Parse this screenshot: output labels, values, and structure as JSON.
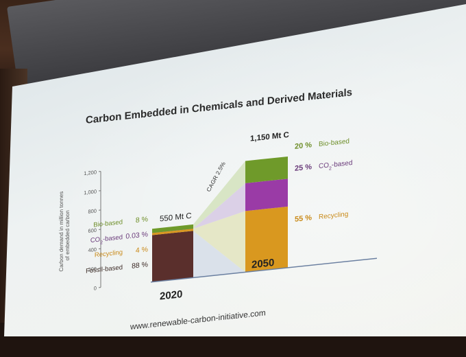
{
  "chart_data": {
    "type": "bar",
    "title": "Carbon Embedded in Chemicals and Derived Materials",
    "ylabel_line1": "Carbon demand in million tonnes",
    "ylabel_line2": "of embedded carbon",
    "ylim": [
      0,
      1200
    ],
    "yticks": [
      "0",
      "200",
      "400",
      "600",
      "800",
      "1,000",
      "1,200"
    ],
    "ytick_values": [
      0,
      200,
      400,
      600,
      800,
      1000,
      1200
    ],
    "categories": [
      "2020",
      "2050"
    ],
    "totals": [
      "550 Mt C",
      "1,150 Mt C"
    ],
    "total_values": [
      550,
      1150
    ],
    "cagr_label": "CAGR 2.5%",
    "series": [
      {
        "name": "Fossil-based",
        "color": "#5a2f2c",
        "values": [
          484,
          0
        ],
        "pct_labels": [
          "88 %",
          ""
        ]
      },
      {
        "name": "Recycling",
        "color": "#d9981f",
        "values": [
          22,
          632.5
        ],
        "pct_labels": [
          "4 %",
          "55 %"
        ]
      },
      {
        "name": "CO2-based",
        "color": "#9a3ba6",
        "values": [
          0.2,
          287.5
        ],
        "pct_labels": [
          "0.03 %",
          "25 %"
        ]
      },
      {
        "name": "Bio-based",
        "color": "#6f9a2a",
        "values": [
          44,
          230
        ],
        "pct_labels": [
          "8 %",
          "20 %"
        ]
      }
    ],
    "legend_2020": [
      {
        "name": "Bio-based",
        "pct": "8 %",
        "color": "#6f8f2a"
      },
      {
        "name": "CO",
        "sub": "2",
        "suffix": "-based",
        "pct": "0.03 %",
        "color": "#6a3b7a"
      },
      {
        "name": "Recycling",
        "pct": "4 %",
        "color": "#c98a18"
      },
      {
        "name": "Fossil-based",
        "pct": "88 %",
        "color": "#3b2a25"
      }
    ],
    "legend_2050": [
      {
        "name": "Bio-based",
        "pct": "20 %",
        "color": "#6f8f2a"
      },
      {
        "name": "CO",
        "sub": "2",
        "suffix": "-based",
        "pct": "25 %",
        "color": "#6a3b7a"
      },
      {
        "name": "Recycling",
        "pct": "55 %",
        "color": "#c98a18"
      }
    ]
  },
  "footer_url": "www.renewable-carbon-initiative.com"
}
